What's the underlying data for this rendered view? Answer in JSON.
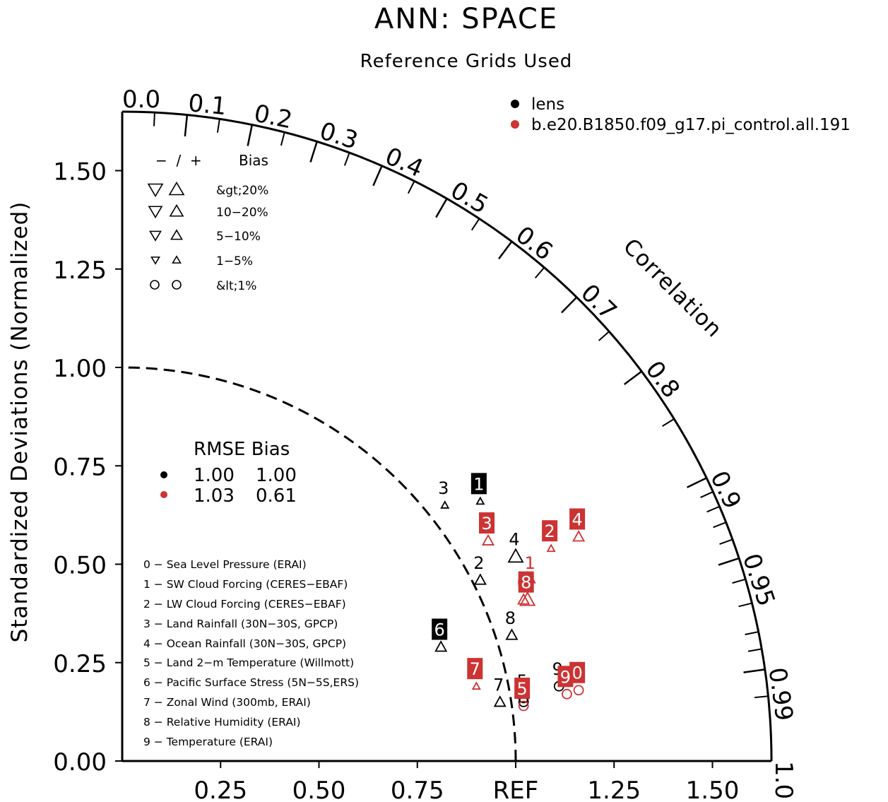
{
  "chart_data": {
    "type": "scatter",
    "diagram": "taylor",
    "title": "ANN: SPACE",
    "subtitle": "Reference Grids Used",
    "ylabel": "Standardized Deviations (Normalized)",
    "correlation_label": "Correlation",
    "ref_label": "REF",
    "ylim": [
      0,
      1.65
    ],
    "y_ticks": [
      "0.00",
      "0.25",
      "0.50",
      "0.75",
      "1.00",
      "1.25",
      "1.50"
    ],
    "y_tick_values": [
      0,
      0.25,
      0.5,
      0.75,
      1.0,
      1.25,
      1.5
    ],
    "x_ticks": [
      "0.25",
      "0.50",
      "0.75",
      "REF",
      "1.25",
      "1.50"
    ],
    "x_tick_values": [
      0.25,
      0.5,
      0.75,
      1.0,
      1.25,
      1.5
    ],
    "correlation_ticks": [
      {
        "label": "0.0",
        "value": 0.0
      },
      {
        "label": "0.1",
        "value": 0.1
      },
      {
        "label": "0.2",
        "value": 0.2
      },
      {
        "label": "0.3",
        "value": 0.3
      },
      {
        "label": "0.4",
        "value": 0.4
      },
      {
        "label": "0.5",
        "value": 0.5
      },
      {
        "label": "0.6",
        "value": 0.6
      },
      {
        "label": "0.7",
        "value": 0.7
      },
      {
        "label": "0.8",
        "value": 0.8
      },
      {
        "label": "0.9",
        "value": 0.9
      },
      {
        "label": "0.95",
        "value": 0.95
      },
      {
        "label": "0.99",
        "value": 0.99
      },
      {
        "label": "1.0",
        "value": 1.0
      }
    ],
    "legend": {
      "placement": "top-right",
      "entries": [
        {
          "name": "lens",
          "color": "#000000"
        },
        {
          "name": "b.e20.B1850.f09_g17.pi_control.all.191",
          "color": "#cc3333"
        }
      ]
    },
    "bias_legend": {
      "header_sign": "−  /  +",
      "header_label": "Bias",
      "rows": [
        "&gt;20%",
        "10−20%",
        "5−10%",
        "1−5%",
        "&lt;1%"
      ]
    },
    "rmse_table": {
      "header": "RMSE Bias",
      "rows": [
        {
          "rmse": "1.00",
          "bias": "1.00",
          "color": "#000000"
        },
        {
          "rmse": "1.03",
          "bias": "0.61",
          "color": "#cc3333"
        }
      ]
    },
    "variables": [
      "0 − Sea Level Pressure (ERAI)",
      "1 − SW Cloud Forcing (CERES−EBAF)",
      "2 − LW Cloud Forcing (CERES−EBAF)",
      "3 − Land Rainfall (30N−30S, GPCP)",
      "4 − Ocean Rainfall (30N−30S, GPCP)",
      "5 − Land 2−m Temperature (Willmott)",
      "6 − Pacific Surface Stress (5N−5S,ERS)",
      "7 − Zonal Wind (300mb, ERAI)",
      "8 − Relative Humidity (ERAI)",
      "9 − Temperature (ERAI)"
    ],
    "series": [
      {
        "name": "lens",
        "color": "#000000",
        "points": [
          {
            "id": "0",
            "x": 1.02,
            "y": 0.15,
            "marker": "circle",
            "size": 1,
            "boxed": false
          },
          {
            "id": "1",
            "x": 0.91,
            "y": 0.66,
            "marker": "up",
            "size": 1,
            "boxed": true
          },
          {
            "id": "2",
            "x": 0.91,
            "y": 0.46,
            "marker": "up",
            "size": 2,
            "boxed": false
          },
          {
            "id": "3",
            "x": 0.82,
            "y": 0.65,
            "marker": "up",
            "size": 1,
            "boxed": false
          },
          {
            "id": "4",
            "x": 1.0,
            "y": 0.52,
            "marker": "up",
            "size": 3,
            "boxed": false
          },
          {
            "id": "5",
            "x": 1.02,
            "y": 0.16,
            "marker": "circle",
            "size": 1,
            "boxed": false
          },
          {
            "id": "6",
            "x": 0.81,
            "y": 0.29,
            "marker": "up",
            "size": 2,
            "boxed": true
          },
          {
            "id": "7",
            "x": 0.96,
            "y": 0.15,
            "marker": "up",
            "size": 2,
            "boxed": false
          },
          {
            "id": "8",
            "x": 0.99,
            "y": 0.32,
            "marker": "up",
            "size": 2,
            "boxed": false
          },
          {
            "id": "9",
            "x": 1.11,
            "y": 0.19,
            "marker": "circle",
            "size": 1,
            "boxed": false
          }
        ]
      },
      {
        "name": "b.e20.B1850.f09_g17.pi_control.all.191",
        "color": "#cc3333",
        "points": [
          {
            "id": "0",
            "x": 1.16,
            "y": 0.18,
            "marker": "circle",
            "size": 1,
            "boxed": true
          },
          {
            "id": "1",
            "x": 1.04,
            "y": 0.46,
            "marker": "up",
            "size": 1,
            "boxed": false
          },
          {
            "id": "2",
            "x": 1.09,
            "y": 0.54,
            "marker": "up",
            "size": 1,
            "boxed": true
          },
          {
            "id": "3",
            "x": 0.93,
            "y": 0.56,
            "marker": "up",
            "size": 2,
            "boxed": true
          },
          {
            "id": "4",
            "x": 1.16,
            "y": 0.57,
            "marker": "up",
            "size": 2,
            "boxed": true
          },
          {
            "id": "5",
            "x": 1.02,
            "y": 0.14,
            "marker": "circle",
            "size": 1,
            "boxed": true
          },
          {
            "id": "6",
            "x": 1.02,
            "y": 0.41,
            "marker": "up",
            "size": 2,
            "boxed": false
          },
          {
            "id": "7",
            "x": 0.9,
            "y": 0.19,
            "marker": "up",
            "size": 1,
            "boxed": true
          },
          {
            "id": "8",
            "x": 1.03,
            "y": 0.41,
            "marker": "up",
            "size": 3,
            "boxed": true
          },
          {
            "id": "9",
            "x": 1.13,
            "y": 0.17,
            "marker": "circle",
            "size": 1,
            "boxed": true
          }
        ]
      }
    ]
  }
}
